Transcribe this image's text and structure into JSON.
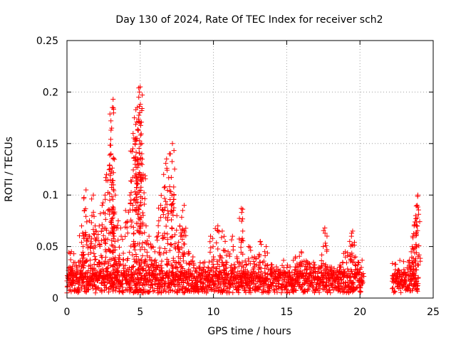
{
  "chart_data": {
    "type": "scatter",
    "title": "Day 130 of 2024, Rate Of TEC Index for receiver sch2",
    "xlabel": "GPS time / hours",
    "ylabel": "ROTI / TECUs",
    "xlim": [
      0,
      25
    ],
    "ylim": [
      0,
      0.25
    ],
    "xticks": [
      0,
      5,
      10,
      15,
      20,
      25
    ],
    "xtick_labels": [
      "0",
      "5",
      "10",
      "15",
      "20",
      "25"
    ],
    "yticks": [
      0,
      0.05,
      0.1,
      0.15,
      0.2,
      0.25
    ],
    "ytick_labels": [
      "0",
      "0.05",
      "0.1",
      "0.15",
      "0.2",
      "0.25"
    ],
    "grid": true,
    "marker": "plus",
    "color": "#ff0000",
    "series": [
      {
        "name": "ROTI",
        "points": [
          [
            0.1,
            0.015
          ],
          [
            0.2,
            0.03
          ],
          [
            0.3,
            0.045
          ],
          [
            0.4,
            0.025
          ],
          [
            0.6,
            0.02
          ],
          [
            0.8,
            0.035
          ],
          [
            1.0,
            0.07
          ],
          [
            1.1,
            0.05
          ],
          [
            1.2,
            0.085
          ],
          [
            1.3,
            0.105
          ],
          [
            1.5,
            0.06
          ],
          [
            1.7,
            0.08
          ],
          [
            1.8,
            0.1
          ],
          [
            2.0,
            0.065
          ],
          [
            2.2,
            0.07
          ],
          [
            2.4,
            0.09
          ],
          [
            2.6,
            0.1
          ],
          [
            2.7,
            0.12
          ],
          [
            2.8,
            0.085
          ],
          [
            3.0,
            0.14
          ],
          [
            3.05,
            0.165
          ],
          [
            3.1,
            0.185
          ],
          [
            3.15,
            0.193
          ],
          [
            3.3,
            0.1
          ],
          [
            3.5,
            0.075
          ],
          [
            3.7,
            0.06
          ],
          [
            4.0,
            0.085
          ],
          [
            4.3,
            0.1
          ],
          [
            4.5,
            0.145
          ],
          [
            4.6,
            0.175
          ],
          [
            4.7,
            0.155
          ],
          [
            4.8,
            0.185
          ],
          [
            4.9,
            0.195
          ],
          [
            4.95,
            0.2
          ],
          [
            5.0,
            0.205
          ],
          [
            5.1,
            0.15
          ],
          [
            5.2,
            0.12
          ],
          [
            5.4,
            0.07
          ],
          [
            5.6,
            0.06
          ],
          [
            5.8,
            0.05
          ],
          [
            6.0,
            0.045
          ],
          [
            6.2,
            0.06
          ],
          [
            6.4,
            0.09
          ],
          [
            6.6,
            0.12
          ],
          [
            6.8,
            0.135
          ],
          [
            7.0,
            0.14
          ],
          [
            7.2,
            0.15
          ],
          [
            7.3,
            0.1
          ],
          [
            7.5,
            0.08
          ],
          [
            7.7,
            0.07
          ],
          [
            7.9,
            0.085
          ],
          [
            8.0,
            0.09
          ],
          [
            8.3,
            0.045
          ],
          [
            8.6,
            0.04
          ],
          [
            9.0,
            0.03
          ],
          [
            9.4,
            0.035
          ],
          [
            9.8,
            0.06
          ],
          [
            10.0,
            0.04
          ],
          [
            10.3,
            0.07
          ],
          [
            10.6,
            0.065
          ],
          [
            10.8,
            0.055
          ],
          [
            11.0,
            0.045
          ],
          [
            11.3,
            0.06
          ],
          [
            11.6,
            0.04
          ],
          [
            11.9,
            0.087
          ],
          [
            12.0,
            0.065
          ],
          [
            12.4,
            0.05
          ],
          [
            12.8,
            0.04
          ],
          [
            13.2,
            0.055
          ],
          [
            13.6,
            0.05
          ],
          [
            14.0,
            0.03
          ],
          [
            14.4,
            0.028
          ],
          [
            14.8,
            0.025
          ],
          [
            15.2,
            0.025
          ],
          [
            15.6,
            0.04
          ],
          [
            16.0,
            0.045
          ],
          [
            16.4,
            0.035
          ],
          [
            16.8,
            0.03
          ],
          [
            17.2,
            0.03
          ],
          [
            17.5,
            0.05
          ],
          [
            17.6,
            0.068
          ],
          [
            17.8,
            0.03
          ],
          [
            18.2,
            0.025
          ],
          [
            18.6,
            0.03
          ],
          [
            19.0,
            0.045
          ],
          [
            19.3,
            0.055
          ],
          [
            19.5,
            0.065
          ],
          [
            19.7,
            0.04
          ],
          [
            19.9,
            0.025
          ],
          [
            20.1,
            0.02
          ],
          [
            22.3,
            0.015
          ],
          [
            22.6,
            0.02
          ],
          [
            23.0,
            0.025
          ],
          [
            23.3,
            0.035
          ],
          [
            23.5,
            0.045
          ],
          [
            23.6,
            0.06
          ],
          [
            23.7,
            0.07
          ],
          [
            23.8,
            0.08
          ],
          [
            23.9,
            0.09
          ],
          [
            23.95,
            0.1
          ]
        ]
      }
    ],
    "data_segments": [
      {
        "start": 0.0,
        "end": 20.2
      },
      {
        "start": 22.2,
        "end": 24.0
      }
    ],
    "baseline_range": [
      0.005,
      0.025
    ]
  }
}
